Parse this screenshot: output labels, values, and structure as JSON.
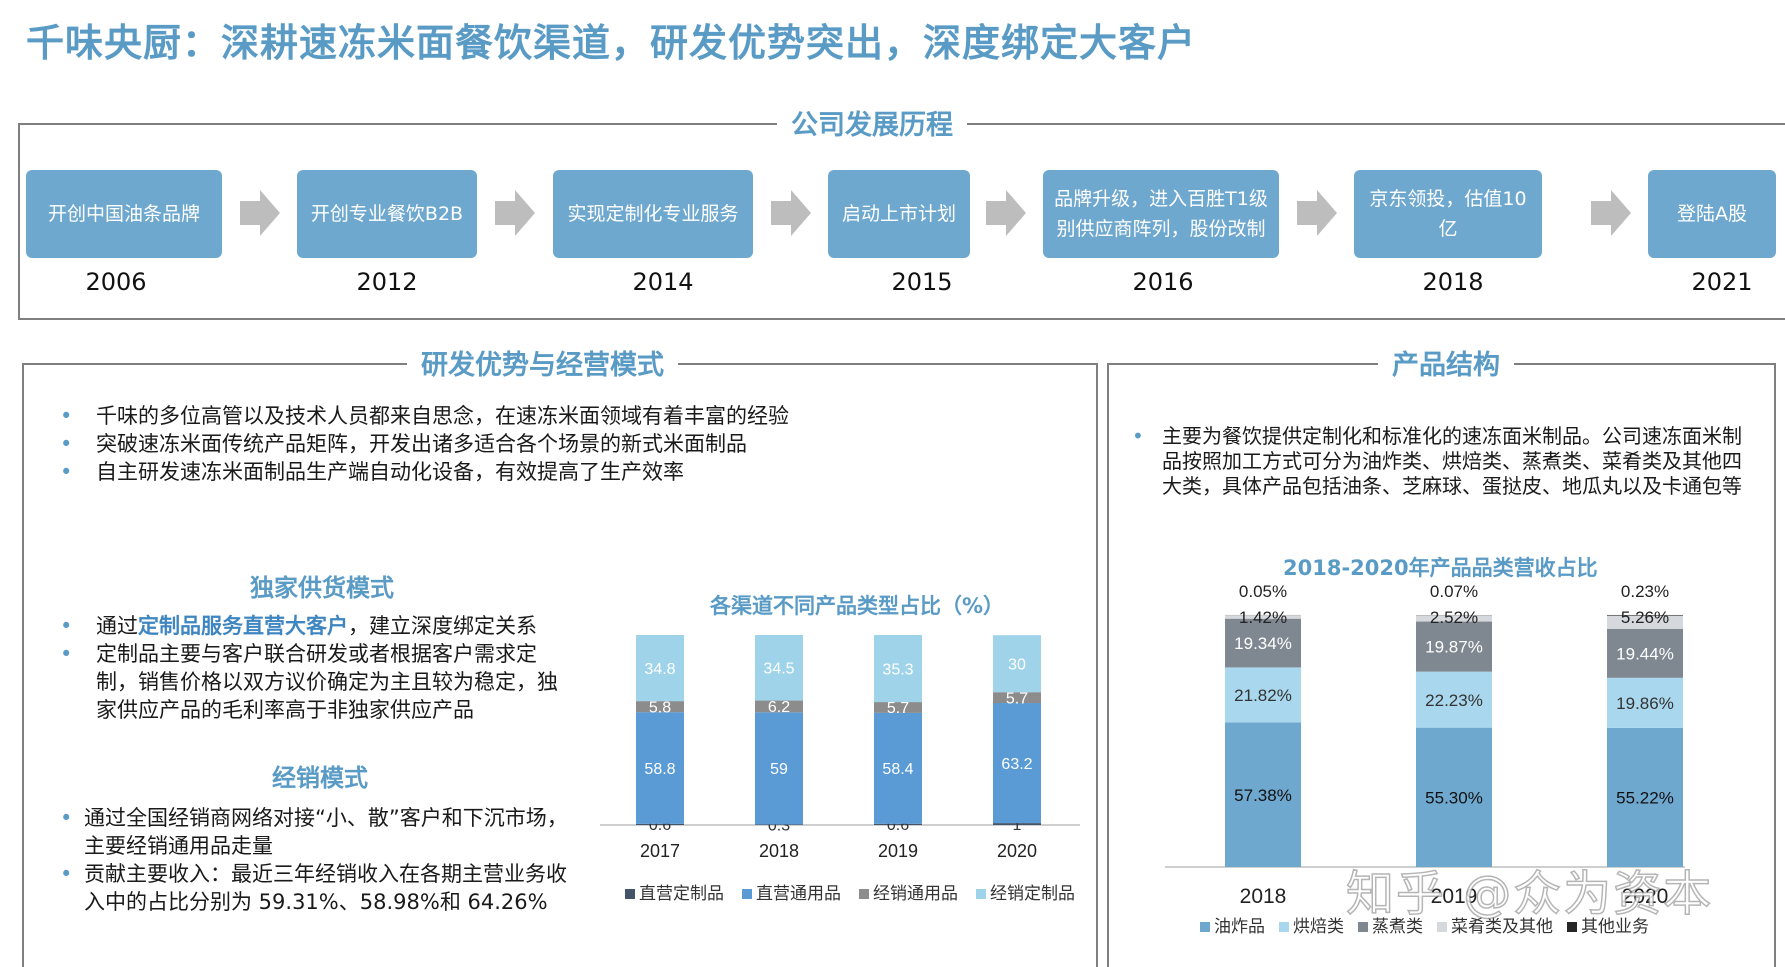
{
  "title": "千味央厨：深耕速冻米面餐饮渠道，研发优势突出，深度绑定大客户",
  "timeline": {
    "heading": "公司发展历程",
    "items": [
      {
        "label": "开创中国油条品牌",
        "year": "2006"
      },
      {
        "label": "开创专业餐饮B2B",
        "year": "2012"
      },
      {
        "label": "实现定制化专业服务",
        "year": "2014"
      },
      {
        "label": "启动上市计划",
        "year": "2015"
      },
      {
        "label": "品牌升级，进入百胜T1级别供应商阵列，股份改制",
        "year": "2016"
      },
      {
        "label": "京东领投，估值10亿",
        "year": "2018"
      },
      {
        "label": "登陆A股",
        "year": "2021"
      }
    ]
  },
  "rd": {
    "heading": "研发优势与经营模式",
    "bullets": [
      "千味的多位高管以及技术人员都来自思念，在速冻米面领域有着丰富的经验",
      "突破速冻米面传统产品矩阵，开发出诸多适合各个场景的新式米面制品",
      "自主研发速冻米面制品生产端自动化设备，有效提高了生产效率"
    ],
    "exclusive": {
      "heading": "独家供货模式",
      "b1_prefix": "通过",
      "b1_highlight": "定制品服务直营大客户",
      "b1_suffix": "，建立深度绑定关系",
      "b2": "定制品主要与客户联合研发或者根据客户需求定制，销售价格以双方议价确定为主且较为稳定，独家供应产品的毛利率高于非独家供应产品"
    },
    "dist": {
      "heading": "经销模式",
      "b1": "通过全国经销商网络对接“小、散”客户和下沉市场，主要经销通用品走量",
      "b2": "贡献主要收入：最近三年经销收入在各期主营业务收入中的占比分别为 59.31%、58.98%和 64.26%"
    }
  },
  "product": {
    "heading": "产品结构",
    "bullet": "主要为餐饮提供定制化和标准化的速冻面米制品。公司速冻面米制品按照加工方式可分为油炸类、烘焙类、蒸煮类、菜肴类及其他四大类，具体产品包括油条、芝麻球、蛋挞皮、地瓜丸以及卡通包等"
  },
  "chart_data": [
    {
      "type": "bar",
      "stacked": true,
      "title": "各渠道不同产品类型占比（%）",
      "categories": [
        "2017",
        "2018",
        "2019",
        "2020"
      ],
      "series": [
        {
          "name": "直营定制品",
          "color": "#44546a",
          "values": [
            0.6,
            0.3,
            0.6,
            1
          ],
          "labels": [
            "0.6",
            "0.3",
            "0.6",
            "1"
          ]
        },
        {
          "name": "直营通用品",
          "color": "#5b9bd5",
          "values": [
            58.8,
            59,
            58.4,
            63.2
          ],
          "labels": [
            "58.8",
            "59",
            "58.4",
            "63.2"
          ]
        },
        {
          "name": "经销通用品",
          "color": "#8c8c8c",
          "values": [
            5.8,
            6.2,
            5.7,
            5.7
          ],
          "labels": [
            "5.8",
            "6.2",
            "5.7",
            "5.7"
          ]
        },
        {
          "name": "经销定制品",
          "color": "#9fd3ea",
          "values": [
            34.8,
            34.5,
            35.3,
            30
          ],
          "labels": [
            "34.8",
            "34.5",
            "35.3",
            "30"
          ]
        }
      ],
      "ylim": [
        0,
        100
      ],
      "grid": false,
      "legend": "bottom"
    },
    {
      "type": "bar",
      "stacked": true,
      "title": "2018-2020年产品品类营收占比",
      "categories": [
        "2018",
        "2019",
        "2020"
      ],
      "series": [
        {
          "name": "油炸品",
          "color": "#6fa8cf",
          "values": [
            57.38,
            55.3,
            55.22
          ],
          "labels": [
            "57.38%",
            "55.30%",
            "55.22%"
          ]
        },
        {
          "name": "烘焙类",
          "color": "#a9d8ee",
          "values": [
            21.82,
            22.23,
            19.86
          ],
          "labels": [
            "21.82%",
            "22.23%",
            "19.86%"
          ]
        },
        {
          "name": "蒸煮类",
          "color": "#7f8790",
          "values": [
            19.34,
            19.87,
            19.44
          ],
          "labels": [
            "19.34%",
            "19.87%",
            "19.44%"
          ]
        },
        {
          "name": "菜肴类及其他",
          "color": "#d5d8dc",
          "values": [
            1.42,
            2.52,
            5.26
          ],
          "labels": [
            "1.42%",
            "2.52%",
            "5.26%"
          ]
        },
        {
          "name": "其他业务",
          "color": "#262626",
          "values": [
            0.05,
            0.07,
            0.23
          ],
          "labels": [
            "0.05%",
            "0.07%",
            "0.23%"
          ]
        }
      ],
      "ylim": [
        0,
        100
      ],
      "grid": false,
      "legend": "bottom"
    }
  ],
  "watermark": "知乎 @众为资本"
}
